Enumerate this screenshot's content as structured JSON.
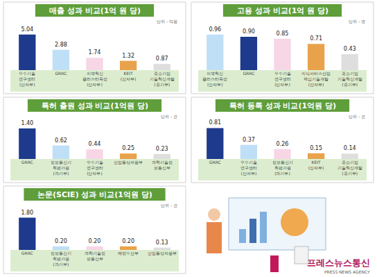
{
  "chart_data": [
    {
      "type": "bar",
      "title": "매출 성과 비교(1억 원 당)",
      "subtitle": "단위 : 억원",
      "categories": [
        "우수기술연구센터(산자부)",
        "GRRC",
        "지역혁신 클러스터육성(산자부)",
        "KEIT(산자부)",
        "중소기업 기술혁신개발(중기부)"
      ],
      "values": [
        5.04,
        2.88,
        1.74,
        1.32,
        0.87
      ],
      "value_labels": [
        "5.04",
        "2.88",
        "1.74",
        "1.32",
        "0.87"
      ],
      "colors": [
        "#1e3a8c",
        "#bfdff6",
        "#f7d6e6",
        "#e9a24c",
        "#dedede"
      ],
      "ylim": [
        0,
        6.3
      ],
      "data_labels": true,
      "tick_labels": "x"
    },
    {
      "type": "bar",
      "title": "고용 성과 비교(1억 원 당)",
      "subtitle": "단위 : 명",
      "categories": [
        "지역혁신 클러스터육성(산자부)",
        "GRRC",
        "우수기술연구센터(산자부)",
        "지식서비스산업 핵심기술개발(산자부)",
        "중소기업 기술혁신개발(중기부)"
      ],
      "values": [
        0.96,
        0.9,
        0.85,
        0.71,
        0.43
      ],
      "value_labels": [
        "0.96",
        "0.90",
        "0.85",
        "0.71",
        "0.43"
      ],
      "colors": [
        "#bfdff6",
        "#1e3a8c",
        "#f7d6e6",
        "#e9a24c",
        "#dedede"
      ],
      "ylim": [
        0,
        1.2
      ],
      "data_labels": true,
      "tick_labels": "x"
    },
    {
      "type": "bar",
      "title": "특허 출원 성과 비교(1억원 당)",
      "subtitle": "단위 : 건",
      "categories": [
        "GRRC",
        "정보통신기획평가원(과기부)",
        "우수기술연구센터(산자부)",
        "산업통상자원부",
        "과학기술정보통신부"
      ],
      "values": [
        1.4,
        0.62,
        0.44,
        0.25,
        0.23
      ],
      "value_labels": [
        "1.40",
        "0.62",
        "0.44",
        "0.25",
        "0.23"
      ],
      "colors": [
        "#1e3a8c",
        "#bfdff6",
        "#f7d6e6",
        "#e9a24c",
        "#dedede"
      ],
      "ylim": [
        0,
        1.75
      ],
      "data_labels": true,
      "tick_labels": "x"
    },
    {
      "type": "bar",
      "title": "특허 등록 성과 비교(1억원 당)",
      "subtitle": "단위 : 건",
      "categories": [
        "GRRC",
        "우수기술연구센터(산자부)",
        "정보통신기획평가원(과기부)",
        "KEIT(산자부)",
        "중소기업 기술혁신개발(중기부)"
      ],
      "values": [
        0.81,
        0.37,
        0.26,
        0.15,
        0.14
      ],
      "value_labels": [
        "0.81",
        "0.37",
        "0.26",
        "0.15",
        "0.14"
      ],
      "colors": [
        "#1e3a8c",
        "#bfdff6",
        "#f7d6e6",
        "#e9a24c",
        "#dedede"
      ],
      "ylim": [
        0,
        1.0
      ],
      "data_labels": true,
      "tick_labels": "x"
    },
    {
      "type": "bar",
      "title": "논문(SCIE) 성과 비교(1억원 당)",
      "subtitle": "단위 : 건",
      "categories": [
        "GRRC",
        "정보통신기획평가원(과기부)",
        "과학기술정보통신부",
        "해양수산부",
        "산업통상자원부"
      ],
      "values": [
        1.8,
        0.2,
        0.2,
        0.2,
        0.13
      ],
      "value_labels": [
        "1.80",
        "0.20",
        "0.20",
        "0.20",
        "0.13"
      ],
      "colors": [
        "#1e3a8c",
        "#bfdff6",
        "#f7d6e6",
        "#e9a24c",
        "#dedede"
      ],
      "ylim": [
        0,
        2.25
      ],
      "data_labels": true,
      "tick_labels": "x"
    }
  ],
  "watermark": {
    "text": "프레스뉴스통신",
    "subtext": "PRESS NEWS AGENCY"
  }
}
